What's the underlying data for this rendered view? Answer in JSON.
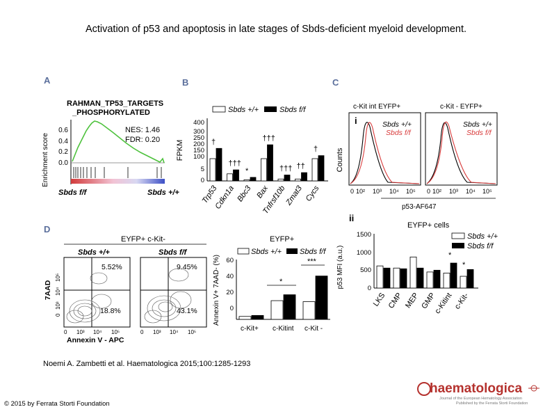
{
  "page": {
    "title": "Activation of p53 and apoptosis in late stages of Sbds-deficient myeloid development.",
    "citation": "Noemi A. Zambetti et al. Haematologica 2015;100:1285-1293",
    "copyright": "© 2015 by Ferrata Storti Foundation",
    "logo_text": "haematologica",
    "logo_subtitle_1": "Journal of the European Hematology Association",
    "logo_subtitle_2": "Published by the Ferrata Storti Foundation"
  },
  "colors": {
    "panel_label": "#5b6f9c",
    "logo_red": "#b5322e",
    "gsea_line": "#4ec23d",
    "hist_red": "#d83a3a"
  },
  "panels": {
    "A": {
      "label": "A",
      "gene_set_line1": "RAHMAN_TP53_TARGETS",
      "gene_set_line2": "_PHOSPHORYLATED",
      "nes": "NES: 1.46",
      "fdr": "FDR: 0.20",
      "ylabel": "Enrichment score",
      "yticks": [
        "0.6",
        "0.4",
        "0.2",
        "0.0"
      ],
      "left_label": "Sbds f/f",
      "right_label": "Sbds +/+"
    },
    "B": {
      "label": "B",
      "legend_wt": "Sbds +/+",
      "legend_ko": "Sbds f/f",
      "ylabel": "FPKM",
      "yticks": [
        "400",
        "300",
        "250",
        "200",
        "150",
        "100",
        "5",
        "0"
      ],
      "genes": [
        "Trp53",
        "Cdkn1a",
        "Bbc3",
        "Bax",
        "Tnfrsf10b",
        "Zmat3",
        "Cycs"
      ],
      "sig": [
        "†",
        "†††",
        "*",
        "†††",
        "†††",
        "††",
        "†"
      ]
    },
    "C": {
      "label": "C",
      "sub_i": "i",
      "sub_ii": "ii",
      "hist1_title": "c-Kit int EYFP+",
      "hist2_title": "c-Kit - EYFP+",
      "legend_wt": "Sbds +/+",
      "legend_ko": "Sbds f/f",
      "ylabel": "Counts",
      "xlabel": "p53-AF647",
      "xticks": [
        "0",
        "10²",
        "10³",
        "10⁴",
        "10⁵"
      ],
      "bar_title": "EYFP+ cells",
      "bar_ylabel": "p53 MFI (a.u.)",
      "bar_yticks": [
        "1500",
        "1000",
        "500",
        "0"
      ],
      "categories": [
        "LKS",
        "CMP",
        "MEP",
        "GMP",
        "c-Kitint",
        "c-Kit-"
      ],
      "sig": [
        "*",
        "*"
      ]
    },
    "D": {
      "label": "D",
      "flow_title": "EYFP+ c-Kit-",
      "flow_left": "Sbds +/+",
      "flow_right": "Sbds f/f",
      "q_ul_wt": "5.52%",
      "q_lr_wt": "18.8%",
      "q_ul_ko": "9.45%",
      "q_lr_ko": "43.1%",
      "flow_ylabel": "7AAD",
      "flow_xlabel": "Annexin V - APC",
      "flow_ticks": [
        "0",
        "10³",
        "10⁴",
        "10⁵"
      ],
      "bar_title": "EYFP+",
      "legend_wt": "Sbds +/+",
      "legend_ko": "Sbds f/f",
      "bar_ylabel": "Annexin V+ 7AAD- (%)",
      "bar_yticks": [
        "60",
        "40",
        "20",
        "0"
      ],
      "categories": [
        "c-Kit+",
        "c-Kitint",
        "c-Kit -"
      ],
      "sig": [
        "*",
        "***"
      ]
    }
  },
  "chart_data": [
    {
      "type": "bar",
      "panel": "B",
      "ylabel": "FPKM",
      "categories": [
        "Trp53",
        "Cdkn1a",
        "Bbc3",
        "Bax",
        "Tnfrsf10b",
        "Zmat3",
        "Cycs"
      ],
      "series": [
        {
          "name": "Sbds +/+",
          "values": [
            100,
            3,
            0.5,
            100,
            0.8,
            0.8,
            100
          ]
        },
        {
          "name": "Sbds f/f",
          "values": [
            185,
            7,
            1.5,
            215,
            2.5,
            3.5,
            125
          ]
        }
      ]
    },
    {
      "type": "bar",
      "panel": "C-ii",
      "title": "EYFP+ cells",
      "ylabel": "p53 MFI (a.u.)",
      "ylim": [
        0,
        1500
      ],
      "categories": [
        "LKS",
        "CMP",
        "MEP",
        "GMP",
        "c-Kitint",
        "c-Kit-"
      ],
      "series": [
        {
          "name": "Sbds +/+",
          "values": [
            620,
            560,
            870,
            450,
            420,
            330
          ]
        },
        {
          "name": "Sbds f/f",
          "values": [
            560,
            540,
            560,
            500,
            700,
            520
          ]
        }
      ]
    },
    {
      "type": "bar",
      "panel": "D",
      "title": "EYFP+",
      "ylabel": "Annexin V+ 7AAD- (%)",
      "ylim": [
        0,
        60
      ],
      "categories": [
        "c-Kit+",
        "c-Kitint",
        "c-Kit -"
      ],
      "series": [
        {
          "name": "Sbds +/+",
          "values": [
            3,
            19,
            18
          ]
        },
        {
          "name": "Sbds f/f",
          "values": [
            4,
            25,
            44
          ]
        }
      ]
    }
  ]
}
